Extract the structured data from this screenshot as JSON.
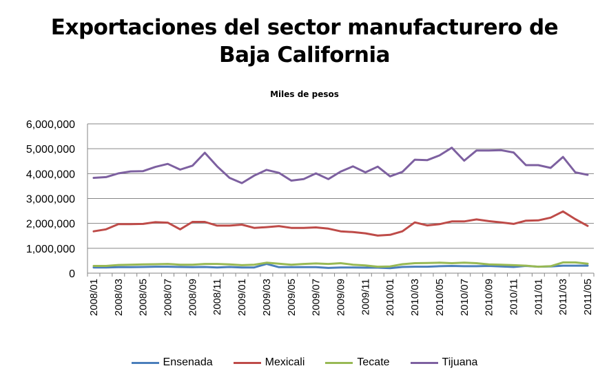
{
  "chart_data": {
    "type": "line",
    "title_line1": "Exportaciones del sector manufacturero de",
    "title_line2": "Baja California",
    "subtitle": "Miles de pesos",
    "ylim": [
      0,
      6000000
    ],
    "yticks": [
      "0",
      "1,000,000",
      "2,000,000",
      "3,000,000",
      "4,000,000",
      "5,000,000",
      "6,000,000"
    ],
    "grid": true,
    "legend_position": "bottom",
    "x": [
      "2008/01",
      "2008/02",
      "2008/03",
      "2008/04",
      "2008/05",
      "2008/06",
      "2008/07",
      "2008/08",
      "2008/09",
      "2008/10",
      "2008/11",
      "2008/12",
      "2009/01",
      "2009/02",
      "2009/03",
      "2009/04",
      "2009/05",
      "2009/06",
      "2009/07",
      "2009/08",
      "2009/09",
      "2009/10",
      "2009/11",
      "2009/12",
      "2010/01",
      "2010/02",
      "2010/03",
      "2010/04",
      "2010/05",
      "2010/06",
      "2010/07",
      "2010/08",
      "2010/09",
      "2010/10",
      "2010/11",
      "2010/12",
      "2011/01",
      "2011/02",
      "2011/03",
      "2011/04",
      "2011/05"
    ],
    "xtick_labels": [
      "2008/01",
      "2008/03",
      "2008/05",
      "2008/07",
      "2008/09",
      "2008/11",
      "2009/01",
      "2009/03",
      "2009/05",
      "2009/07",
      "2009/09",
      "2009/11",
      "2010/01",
      "2010/03",
      "2010/05",
      "2010/07",
      "2010/09",
      "2010/11",
      "2011/01",
      "2011/03",
      "2011/05"
    ],
    "series": [
      {
        "name": "Ensenada",
        "color": "#4a7ebb",
        "values": [
          230000,
          230000,
          240000,
          240000,
          250000,
          260000,
          260000,
          250000,
          240000,
          250000,
          230000,
          250000,
          230000,
          230000,
          370000,
          240000,
          240000,
          240000,
          240000,
          210000,
          230000,
          230000,
          220000,
          220000,
          200000,
          250000,
          260000,
          260000,
          280000,
          290000,
          280000,
          280000,
          290000,
          270000,
          250000,
          290000,
          260000,
          270000,
          300000,
          300000,
          300000
        ]
      },
      {
        "name": "Mexicali",
        "color": "#be4b48",
        "values": [
          1680000,
          1760000,
          1970000,
          1970000,
          1980000,
          2050000,
          2030000,
          1760000,
          2060000,
          2060000,
          1910000,
          1910000,
          1950000,
          1820000,
          1850000,
          1890000,
          1820000,
          1820000,
          1840000,
          1790000,
          1680000,
          1650000,
          1600000,
          1510000,
          1540000,
          1680000,
          2040000,
          1920000,
          1970000,
          2080000,
          2080000,
          2160000,
          2090000,
          2040000,
          1980000,
          2110000,
          2120000,
          2230000,
          2480000,
          2170000,
          1900000
        ]
      },
      {
        "name": "Tecate",
        "color": "#98b954",
        "values": [
          290000,
          290000,
          330000,
          340000,
          350000,
          360000,
          370000,
          340000,
          340000,
          370000,
          370000,
          350000,
          320000,
          340000,
          420000,
          380000,
          340000,
          370000,
          390000,
          370000,
          400000,
          340000,
          310000,
          260000,
          270000,
          360000,
          400000,
          410000,
          420000,
          400000,
          420000,
          400000,
          350000,
          340000,
          320000,
          300000,
          260000,
          280000,
          430000,
          430000,
          380000
        ]
      },
      {
        "name": "Tijuana",
        "color": "#7d60a0",
        "values": [
          3830000,
          3860000,
          4010000,
          4090000,
          4100000,
          4270000,
          4390000,
          4160000,
          4320000,
          4840000,
          4290000,
          3830000,
          3620000,
          3920000,
          4150000,
          4030000,
          3720000,
          3780000,
          4010000,
          3780000,
          4080000,
          4290000,
          4050000,
          4280000,
          3890000,
          4070000,
          4560000,
          4540000,
          4730000,
          5040000,
          4520000,
          4930000,
          4930000,
          4940000,
          4850000,
          4340000,
          4340000,
          4230000,
          4670000,
          4050000,
          3950000
        ]
      }
    ]
  }
}
